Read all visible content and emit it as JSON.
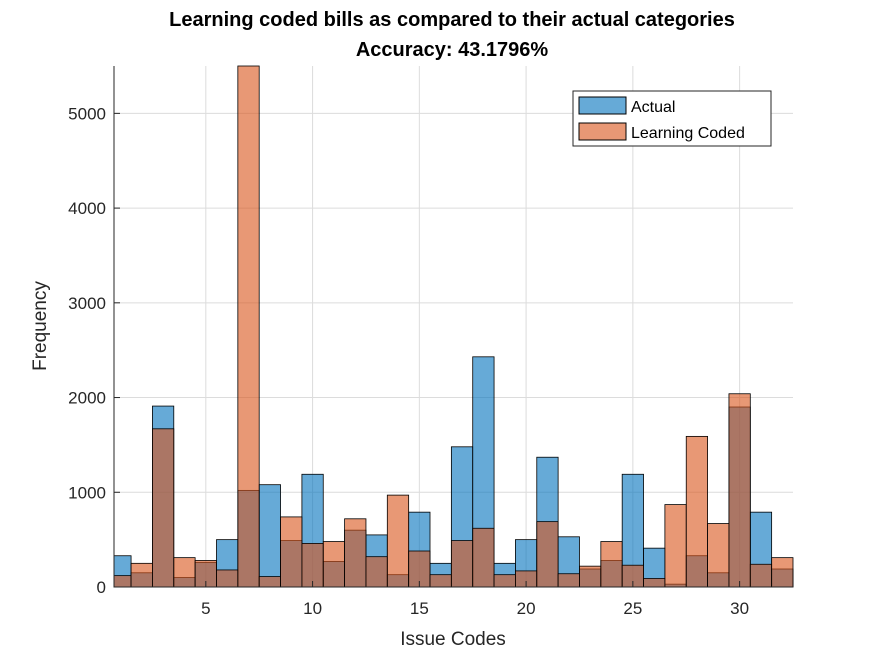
{
  "chart_data": {
    "type": "bar",
    "title": "Learning coded bills as compared to their actual categories",
    "subtitle": "Accuracy: 43.1796%",
    "xlabel": "Issue Codes",
    "ylabel": "Frequency",
    "xlim": [
      0.7,
      32.5
    ],
    "ylim": [
      0,
      5500
    ],
    "xticks": [
      5,
      10,
      15,
      20,
      25,
      30
    ],
    "yticks": [
      0,
      1000,
      2000,
      3000,
      4000,
      5000
    ],
    "grid": true,
    "legend_position": "top-right",
    "categories": [
      1,
      2,
      3,
      4,
      5,
      6,
      7,
      8,
      9,
      10,
      11,
      12,
      13,
      14,
      15,
      16,
      17,
      18,
      19,
      20,
      21,
      22,
      23,
      24,
      25,
      26,
      27,
      28,
      29,
      30,
      31,
      32
    ],
    "series": [
      {
        "name": "Actual",
        "color": "#0072bd",
        "values": [
          330,
          150,
          1910,
          100,
          260,
          500,
          1020,
          1080,
          490,
          1190,
          270,
          600,
          550,
          130,
          790,
          250,
          1480,
          2430,
          250,
          500,
          1370,
          530,
          190,
          280,
          1190,
          410,
          30,
          330,
          150,
          1900,
          790,
          190
        ]
      },
      {
        "name": "Learning Coded",
        "color": "#d95319",
        "values": [
          120,
          250,
          1670,
          310,
          280,
          180,
          5500,
          110,
          740,
          460,
          480,
          720,
          320,
          970,
          380,
          130,
          490,
          620,
          130,
          170,
          690,
          140,
          220,
          480,
          230,
          90,
          870,
          1590,
          670,
          2040,
          240,
          310
        ]
      }
    ]
  }
}
